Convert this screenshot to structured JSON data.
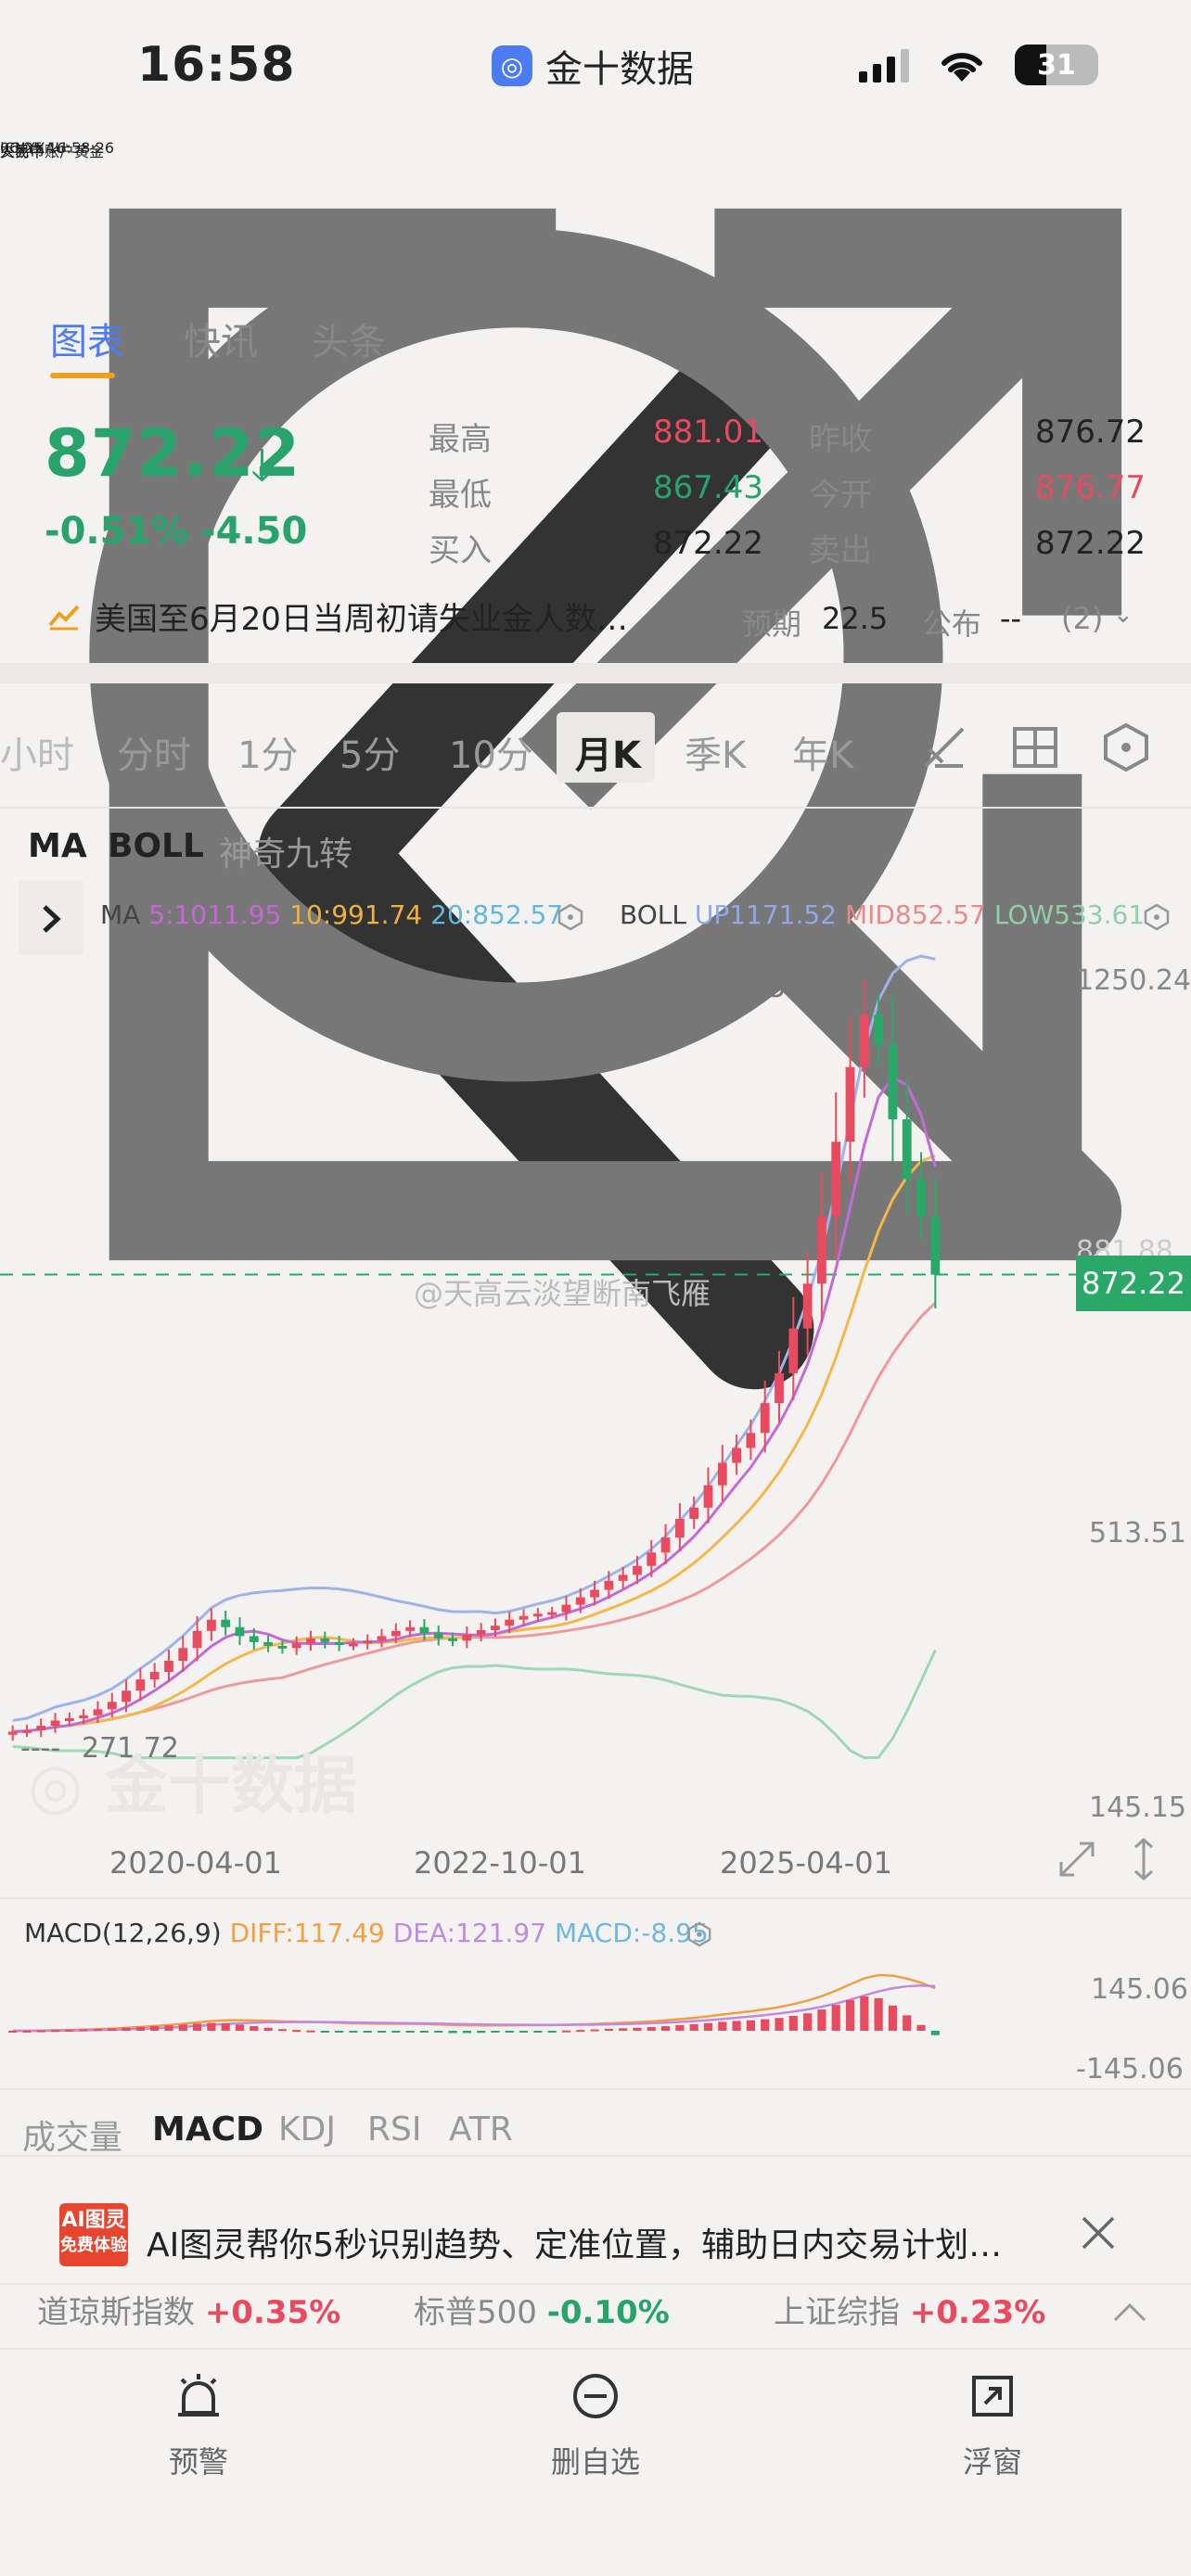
{
  "status_bar": {
    "time": "16:58",
    "app_name": "金十数据",
    "app_icon": "jin10-icon",
    "battery": "31"
  },
  "header": {
    "title": "人民币账户黄金",
    "code": "ICNYXAU",
    "datetime": "06/25 16:58:26",
    "trade_status": "交易中"
  },
  "tabs": [
    {
      "label": "图表",
      "active": true
    },
    {
      "label": "快讯"
    },
    {
      "label": "头条"
    }
  ],
  "quote": {
    "price": "872.22",
    "change_pct": "-0.51%",
    "change": "-4.50",
    "rows": [
      {
        "l1": "最高",
        "v1": "881.01",
        "c1": "#e84a5f",
        "l2": "昨收",
        "v2": "876.72",
        "c2": "#222222"
      },
      {
        "l1": "最低",
        "v1": "867.43",
        "c1": "#27a36b",
        "l2": "今开",
        "v2": "876.77",
        "c2": "#e84a5f"
      },
      {
        "l1": "买入",
        "v1": "872.22",
        "c1": "#222222",
        "l2": "卖出",
        "v2": "872.22",
        "c2": "#222222"
      }
    ]
  },
  "news": {
    "text": "美国至6月20日当周初请失业金人数…",
    "forecast_label": "预期",
    "forecast_value": "22.5",
    "publish_label": "公布",
    "publish_value": "--",
    "count": "(2)"
  },
  "periods": [
    "小时",
    "分时",
    "1分",
    "5分",
    "10分",
    "月K",
    "季K",
    "年K"
  ],
  "active_period": "月K",
  "indicators": {
    "main": [
      {
        "label": "MA",
        "active": true
      },
      {
        "label": "BOLL",
        "active": true
      },
      {
        "label": "神奇九转",
        "active": false
      }
    ]
  },
  "ma": {
    "label": "MA",
    "ma5": "5:1011.95",
    "ma10": "10:991.74",
    "ma20": "20:852.57"
  },
  "boll": {
    "label": "BOLL",
    "up": "UP1171.52",
    "mid": "MID852.57",
    "low": "LOW533.61"
  },
  "chart_labels": {
    "y_top": "1250.24",
    "y_mid": "513.51",
    "y_bottom": "145.15",
    "y_hidden": "881.88",
    "high_marker": "1250.24",
    "low_marker": "271.72",
    "current_price": "872.22",
    "watermark": "@天高云淡望断南飞雁"
  },
  "x_labels": [
    "2020-04-01",
    "2022-10-01",
    "2025-04-01"
  ],
  "macd": {
    "label": "MACD(12,26,9)",
    "diff": "DIFF:117.49",
    "dea": "DEA:121.97",
    "macd": "MACD:-8.95",
    "y_top": "145.06",
    "y_bottom": "-145.06"
  },
  "sub_tabs": [
    {
      "label": "成交量"
    },
    {
      "label": "MACD",
      "active": true
    },
    {
      "label": "KDJ"
    },
    {
      "label": "RSI"
    },
    {
      "label": "ATR"
    }
  ],
  "ai_banner": {
    "badge": "AI图灵",
    "badge2": "免费体验",
    "text": "AI图灵帮你5秒识别趋势、定准位置，辅助日内交易计划…"
  },
  "ticker": [
    {
      "name": "道琼斯指数",
      "value": "+0.35%",
      "dir": "up"
    },
    {
      "name": "标普500",
      "value": "-0.10%",
      "dir": "down"
    },
    {
      "name": "上证综指",
      "value": "+0.23%",
      "dir": "up"
    }
  ],
  "bottom_nav": [
    {
      "label": "预警",
      "icon": "alarm-bell-icon"
    },
    {
      "label": "删自选",
      "icon": "remove-circle-icon"
    },
    {
      "label": "浮窗",
      "icon": "float-window-icon"
    }
  ],
  "chart_data": {
    "type": "candlestick",
    "series_close": [
      260,
      262,
      268,
      275,
      278,
      282,
      290,
      300,
      315,
      330,
      340,
      355,
      372,
      395,
      410,
      400,
      388,
      380,
      375,
      372,
      378,
      385,
      380,
      376,
      378,
      382,
      388,
      395,
      400,
      392,
      385,
      382,
      390,
      396,
      402,
      410,
      415,
      418,
      420,
      430,
      440,
      450,
      462,
      470,
      482,
      500,
      520,
      545,
      560,
      590,
      620,
      640,
      660,
      700,
      740,
      800,
      860,
      950,
      1050,
      1150,
      1220,
      1180,
      1080,
      1000,
      950,
      872
    ]
  }
}
